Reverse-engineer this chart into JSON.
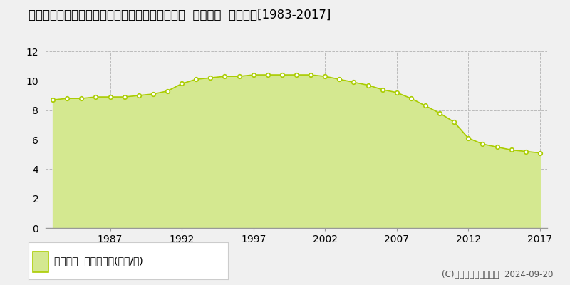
{
  "title": "徳島県鳴門市鳴門町土佐泊浦字高砂１７７番４外  公示地価  地価推移[1983-2017]",
  "years": [
    1983,
    1984,
    1985,
    1986,
    1987,
    1988,
    1989,
    1990,
    1991,
    1992,
    1993,
    1994,
    1995,
    1996,
    1997,
    1998,
    1999,
    2000,
    2001,
    2002,
    2003,
    2004,
    2005,
    2006,
    2007,
    2008,
    2009,
    2010,
    2011,
    2012,
    2013,
    2014,
    2015,
    2016,
    2017
  ],
  "values": [
    8.7,
    8.8,
    8.8,
    8.9,
    8.9,
    8.9,
    9.0,
    9.1,
    9.3,
    9.8,
    10.1,
    10.2,
    10.3,
    10.3,
    10.4,
    10.4,
    10.4,
    10.4,
    10.4,
    10.3,
    10.1,
    9.9,
    9.7,
    9.4,
    9.2,
    8.8,
    8.3,
    7.8,
    7.2,
    6.1,
    5.7,
    5.5,
    5.3,
    5.2,
    5.1
  ],
  "line_color": "#aacc00",
  "fill_color": "#d4e890",
  "marker_color_face": "#ffffff",
  "marker_color_edge": "#aacc00",
  "ylim": [
    0,
    12
  ],
  "yticks": [
    0,
    2,
    4,
    6,
    8,
    10,
    12
  ],
  "xticks": [
    1987,
    1992,
    1997,
    2002,
    2007,
    2012,
    2017
  ],
  "legend_label": "公示地価  平均坪単価(万円/坪)",
  "copyright_text": "(C)土地価格ドットコム  2024-09-20",
  "bg_color": "#f0f0f0",
  "plot_bg_color": "#f0f0f0",
  "grid_color": "#bbbbbb",
  "title_fontsize": 12,
  "tick_fontsize": 10,
  "legend_fontsize": 10
}
